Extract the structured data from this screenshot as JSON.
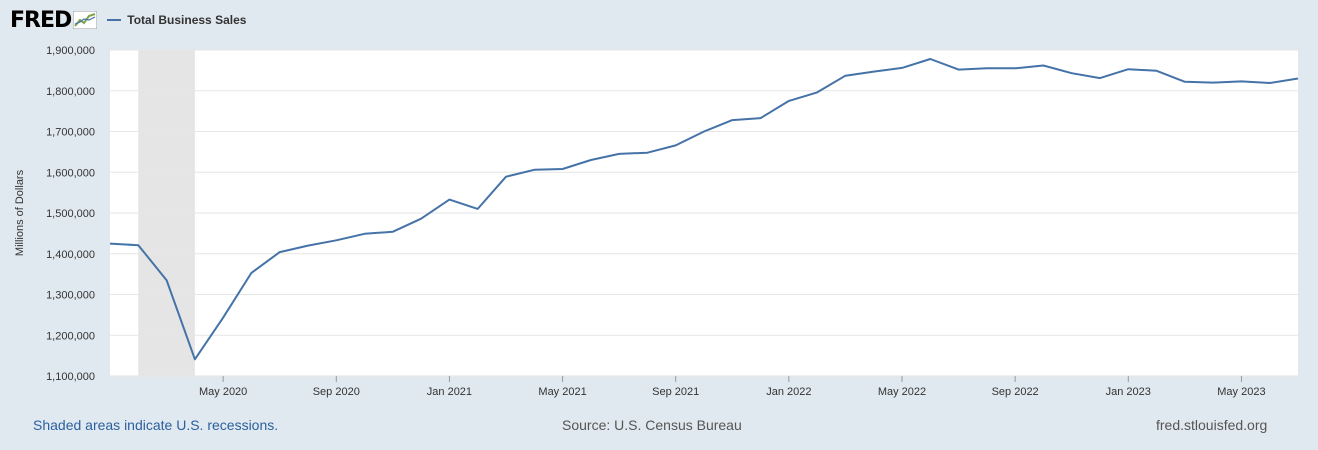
{
  "header": {
    "logo_text": "FRED",
    "logo_icon": "chart-line-icon",
    "series_label": "Total Business Sales",
    "series_color": "#4572a7"
  },
  "footer": {
    "recession_note": "Shaded areas indicate U.S. recessions.",
    "source": "Source: U.S. Census Bureau",
    "site": "fred.stlouisfed.org"
  },
  "chart_data": {
    "type": "line",
    "title": "",
    "xlabel": "",
    "ylabel": "Millions of Dollars",
    "ylim": [
      1100000,
      1900000
    ],
    "y_ticks": [
      1100000,
      1200000,
      1300000,
      1400000,
      1500000,
      1600000,
      1700000,
      1800000,
      1900000
    ],
    "y_tick_labels": [
      "1,100,000",
      "1,200,000",
      "1,300,000",
      "1,400,000",
      "1,500,000",
      "1,600,000",
      "1,700,000",
      "1,800,000",
      "1,900,000"
    ],
    "x_range": [
      "2020-01",
      "2023-07"
    ],
    "x_tick_labels": [
      "May 2020",
      "Sep 2020",
      "Jan 2021",
      "May 2021",
      "Sep 2021",
      "Jan 2022",
      "May 2022",
      "Sep 2022",
      "Jan 2023",
      "May 2023"
    ],
    "x_tick_months": [
      "2020-05",
      "2020-09",
      "2021-01",
      "2021-05",
      "2021-09",
      "2022-01",
      "2022-05",
      "2022-09",
      "2023-01",
      "2023-05"
    ],
    "grid": true,
    "recession_shading": {
      "start": "2020-02",
      "end": "2020-04",
      "color": "#e5e5e5"
    },
    "series": [
      {
        "name": "Total Business Sales",
        "color": "#4572a7",
        "x": [
          "2020-01",
          "2020-02",
          "2020-03",
          "2020-04",
          "2020-05",
          "2020-06",
          "2020-07",
          "2020-08",
          "2020-09",
          "2020-10",
          "2020-11",
          "2020-12",
          "2021-01",
          "2021-02",
          "2021-03",
          "2021-04",
          "2021-05",
          "2021-06",
          "2021-07",
          "2021-08",
          "2021-09",
          "2021-10",
          "2021-11",
          "2021-12",
          "2022-01",
          "2022-02",
          "2022-03",
          "2022-04",
          "2022-05",
          "2022-06",
          "2022-07",
          "2022-08",
          "2022-09",
          "2022-10",
          "2022-11",
          "2022-12",
          "2023-01",
          "2023-02",
          "2023-03",
          "2023-04",
          "2023-05",
          "2023-06",
          "2023-07"
        ],
        "values": [
          1425000,
          1421000,
          1335000,
          1141000,
          1243000,
          1353000,
          1404000,
          1420000,
          1433000,
          1449000,
          1454000,
          1486000,
          1533000,
          1510000,
          1589000,
          1606000,
          1608000,
          1630000,
          1645000,
          1648000,
          1666000,
          1700000,
          1728000,
          1733000,
          1775000,
          1796000,
          1837000,
          1847000,
          1856000,
          1878000,
          1852000,
          1855000,
          1855000,
          1862000,
          1843000,
          1831000,
          1853000,
          1849000,
          1822000,
          1820000,
          1823000,
          1819000,
          1830000
        ]
      }
    ]
  }
}
